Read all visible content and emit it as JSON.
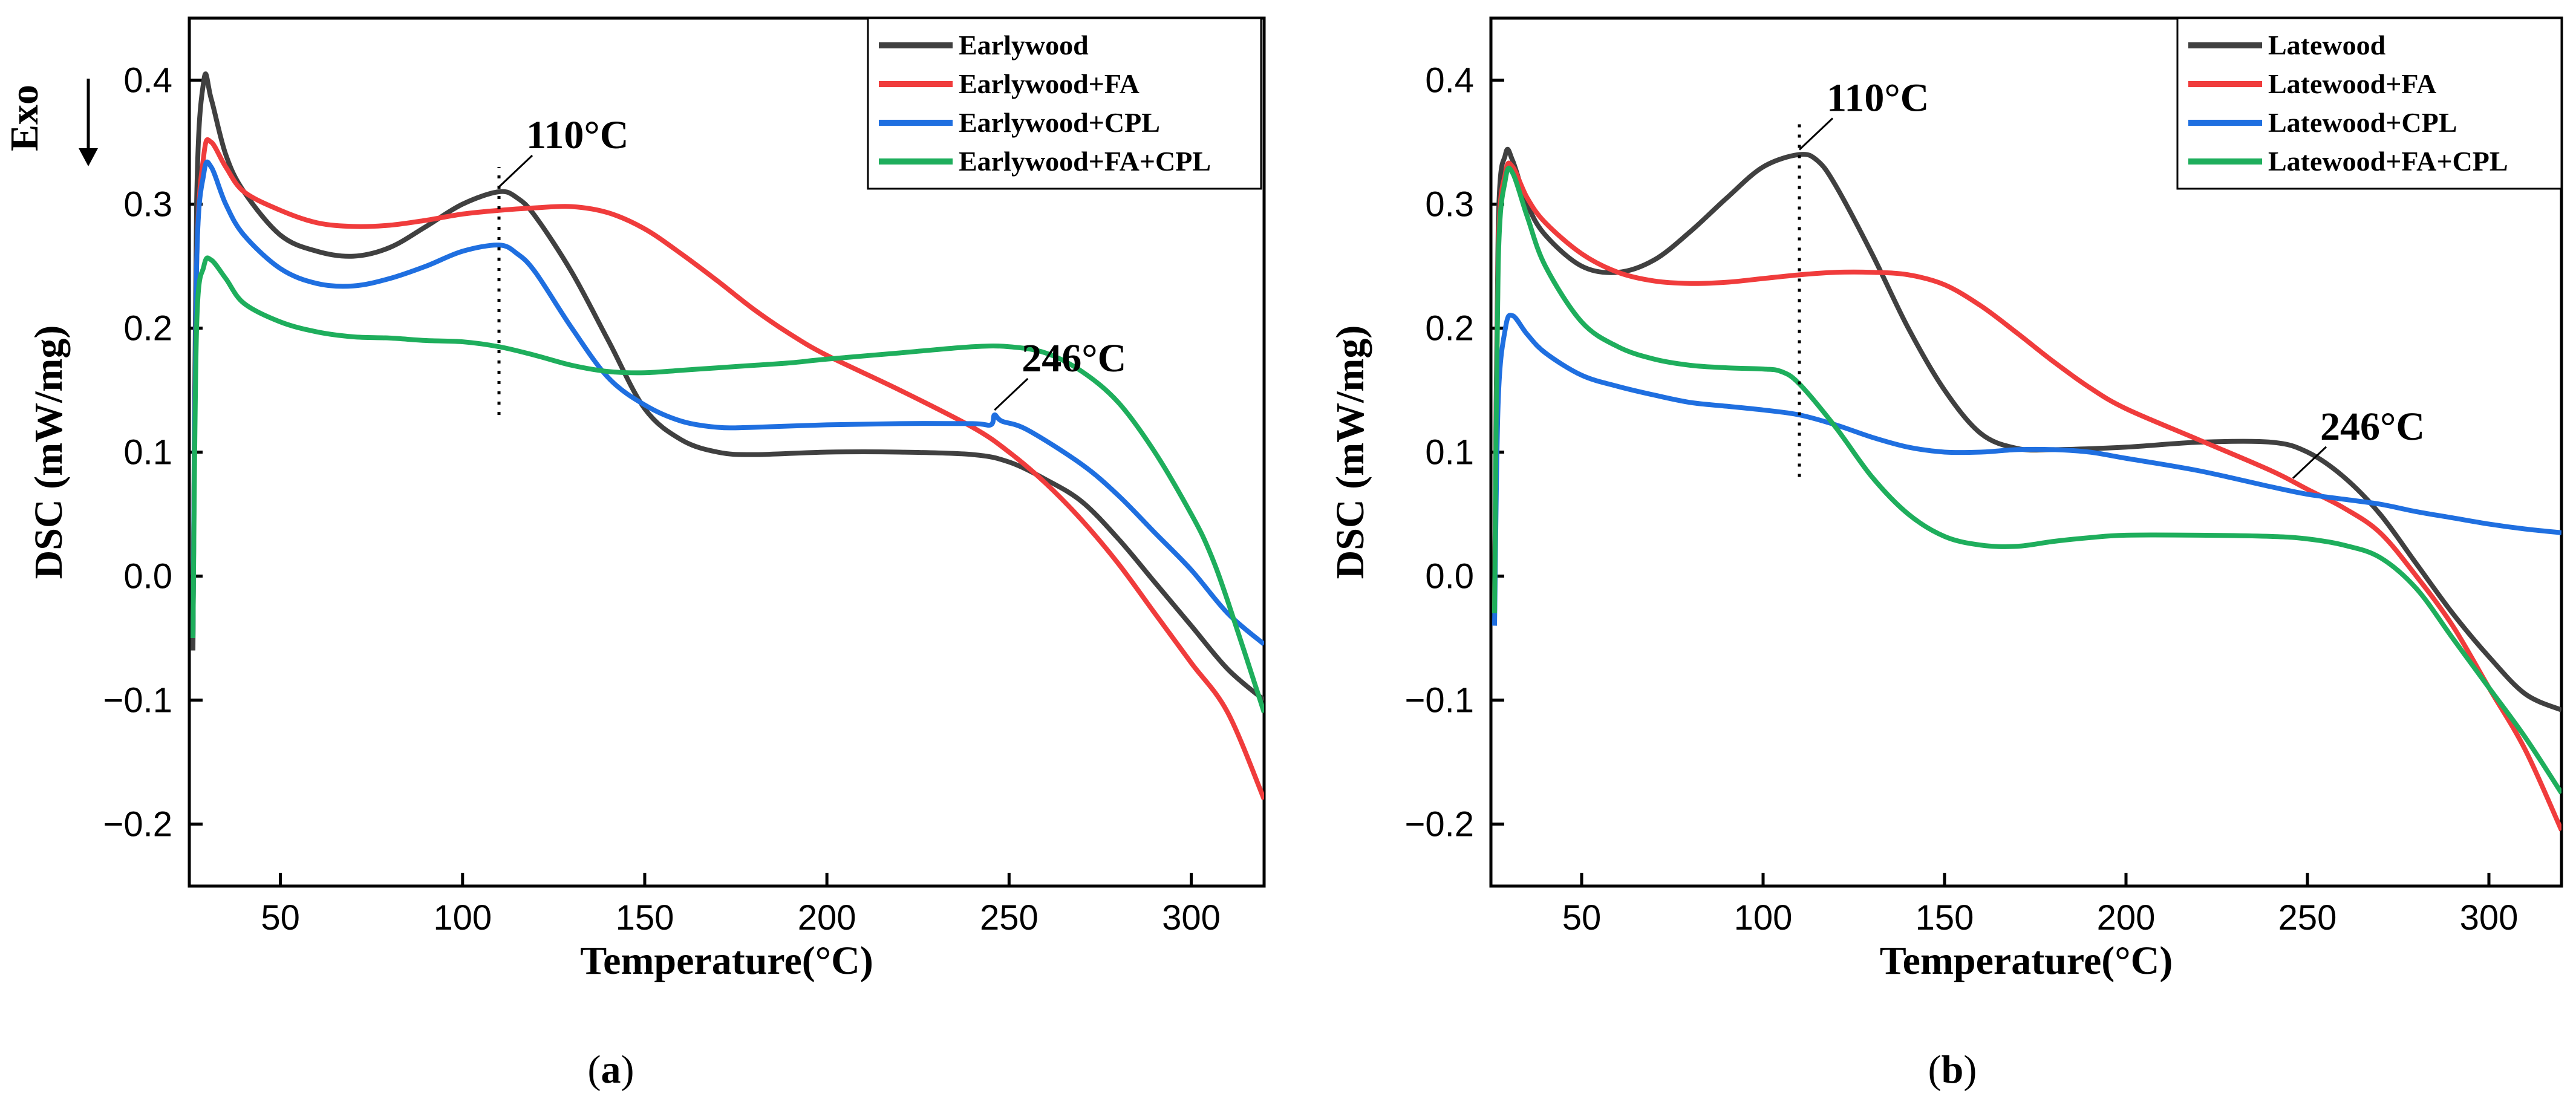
{
  "chart_data": [
    {
      "type": "line",
      "panel_label": "a",
      "title": "",
      "xlabel": "Temperature(°C)",
      "ylabel": "DSC (mW/mg)",
      "corner_label": "Exo",
      "xlim": [
        25,
        320
      ],
      "ylim": [
        -0.25,
        0.45
      ],
      "xticks": [
        50,
        100,
        150,
        200,
        250,
        300
      ],
      "yticks": [
        -0.2,
        -0.1,
        0.0,
        0.1,
        0.2,
        0.3,
        0.4
      ],
      "ytick_labels": [
        "−0.2",
        "−0.1",
        "0.0",
        "0.1",
        "0.2",
        "0.3",
        "0.4"
      ],
      "legend_position": "top-right",
      "annotations": [
        {
          "text": "110°C",
          "x": 110,
          "y": 0.31,
          "guide": {
            "x": 110,
            "y_from": 0.13,
            "y_to": 0.33
          }
        },
        {
          "text": "246°C",
          "x": 246,
          "y": 0.13
        }
      ],
      "series": [
        {
          "name": "Earlywood",
          "color": "#404040",
          "x": [
            26,
            27,
            29,
            31,
            35,
            40,
            50,
            60,
            70,
            80,
            90,
            100,
            110,
            115,
            120,
            130,
            140,
            150,
            160,
            170,
            180,
            200,
            220,
            240,
            250,
            260,
            270,
            280,
            290,
            300,
            310,
            320
          ],
          "y": [
            -0.06,
            0.3,
            0.4,
            0.385,
            0.34,
            0.31,
            0.275,
            0.262,
            0.258,
            0.265,
            0.282,
            0.3,
            0.31,
            0.305,
            0.29,
            0.245,
            0.19,
            0.135,
            0.11,
            0.1,
            0.098,
            0.1,
            0.1,
            0.098,
            0.092,
            0.078,
            0.06,
            0.03,
            -0.005,
            -0.04,
            -0.075,
            -0.1
          ]
        },
        {
          "name": "Earlywood+FA",
          "color": "#f03c3c",
          "x": [
            26,
            27,
            29,
            31,
            35,
            40,
            50,
            60,
            70,
            80,
            90,
            100,
            110,
            120,
            130,
            140,
            150,
            160,
            170,
            180,
            190,
            200,
            220,
            240,
            250,
            260,
            270,
            280,
            290,
            300,
            310,
            320
          ],
          "y": [
            -0.05,
            0.25,
            0.34,
            0.35,
            0.33,
            0.31,
            0.295,
            0.285,
            0.282,
            0.283,
            0.287,
            0.292,
            0.295,
            0.297,
            0.298,
            0.293,
            0.28,
            0.26,
            0.238,
            0.215,
            0.195,
            0.178,
            0.15,
            0.12,
            0.1,
            0.075,
            0.045,
            0.01,
            -0.03,
            -0.07,
            -0.11,
            -0.18
          ]
        },
        {
          "name": "Earlywood+CPL",
          "color": "#1f6fe0",
          "x": [
            26,
            27,
            29,
            31,
            35,
            40,
            50,
            60,
            70,
            80,
            90,
            100,
            110,
            115,
            120,
            130,
            140,
            150,
            160,
            170,
            180,
            200,
            220,
            240,
            245,
            246,
            248,
            255,
            270,
            280,
            290,
            300,
            310,
            320
          ],
          "y": [
            -0.05,
            0.25,
            0.325,
            0.33,
            0.3,
            0.275,
            0.248,
            0.236,
            0.234,
            0.24,
            0.25,
            0.262,
            0.267,
            0.26,
            0.245,
            0.2,
            0.16,
            0.138,
            0.125,
            0.12,
            0.12,
            0.122,
            0.123,
            0.123,
            0.122,
            0.13,
            0.125,
            0.118,
            0.09,
            0.065,
            0.035,
            0.005,
            -0.03,
            -0.055
          ]
        },
        {
          "name": "Earlywood+FA+CPL",
          "color": "#1eae5c",
          "x": [
            26,
            27,
            29,
            31,
            35,
            40,
            50,
            60,
            70,
            80,
            90,
            100,
            110,
            120,
            130,
            140,
            150,
            160,
            170,
            180,
            190,
            200,
            220,
            240,
            250,
            260,
            270,
            280,
            290,
            300,
            305,
            310,
            320
          ],
          "y": [
            -0.05,
            0.2,
            0.25,
            0.255,
            0.24,
            0.22,
            0.205,
            0.197,
            0.193,
            0.192,
            0.19,
            0.189,
            0.185,
            0.178,
            0.17,
            0.165,
            0.164,
            0.166,
            0.168,
            0.17,
            0.172,
            0.175,
            0.18,
            0.185,
            0.185,
            0.18,
            0.165,
            0.14,
            0.1,
            0.05,
            0.02,
            -0.02,
            -0.11
          ]
        }
      ]
    },
    {
      "type": "line",
      "panel_label": "b",
      "title": "",
      "xlabel": "Temperature(°C)",
      "ylabel": "DSC (mW/mg)",
      "xlim": [
        25,
        320
      ],
      "ylim": [
        -0.25,
        0.45
      ],
      "xticks": [
        50,
        100,
        150,
        200,
        250,
        300
      ],
      "yticks": [
        -0.2,
        -0.1,
        0.0,
        0.1,
        0.2,
        0.3,
        0.4
      ],
      "ytick_labels": [
        "−0.2",
        "−0.1",
        "0.0",
        "0.1",
        "0.2",
        "0.3",
        "0.4"
      ],
      "legend_position": "top-right",
      "annotations": [
        {
          "text": "110°C",
          "x": 110,
          "y": 0.34,
          "guide": {
            "x": 110,
            "y_from": 0.08,
            "y_to": 0.37
          }
        },
        {
          "text": "246°C",
          "x": 246,
          "y": 0.075
        }
      ],
      "series": [
        {
          "name": "Latewood",
          "color": "#404040",
          "x": [
            26,
            27,
            29,
            31,
            35,
            40,
            50,
            60,
            70,
            80,
            90,
            100,
            110,
            115,
            120,
            130,
            140,
            150,
            160,
            170,
            180,
            200,
            220,
            240,
            250,
            260,
            270,
            280,
            290,
            300,
            310,
            320
          ],
          "y": [
            -0.03,
            0.28,
            0.34,
            0.335,
            0.3,
            0.275,
            0.25,
            0.245,
            0.255,
            0.278,
            0.305,
            0.33,
            0.34,
            0.335,
            0.315,
            0.26,
            0.2,
            0.15,
            0.115,
            0.103,
            0.102,
            0.104,
            0.108,
            0.108,
            0.1,
            0.08,
            0.05,
            0.01,
            -0.03,
            -0.065,
            -0.095,
            -0.108
          ]
        },
        {
          "name": "Latewood+FA",
          "color": "#f03c3c",
          "x": [
            26,
            27,
            29,
            31,
            35,
            40,
            50,
            60,
            70,
            80,
            90,
            100,
            110,
            120,
            130,
            140,
            150,
            160,
            170,
            180,
            190,
            200,
            220,
            240,
            250,
            260,
            270,
            280,
            290,
            300,
            310,
            320
          ],
          "y": [
            -0.03,
            0.26,
            0.325,
            0.33,
            0.305,
            0.285,
            0.26,
            0.245,
            0.238,
            0.236,
            0.237,
            0.24,
            0.243,
            0.245,
            0.245,
            0.243,
            0.235,
            0.218,
            0.196,
            0.173,
            0.152,
            0.135,
            0.11,
            0.085,
            0.07,
            0.055,
            0.035,
            0.0,
            -0.04,
            -0.09,
            -0.14,
            -0.205
          ]
        },
        {
          "name": "Latewood+CPL",
          "color": "#1f6fe0",
          "x": [
            26,
            27,
            29,
            31,
            35,
            40,
            50,
            60,
            70,
            80,
            90,
            100,
            110,
            120,
            130,
            140,
            150,
            160,
            170,
            180,
            190,
            200,
            220,
            240,
            250,
            260,
            270,
            280,
            290,
            300,
            310,
            320
          ],
          "y": [
            -0.04,
            0.14,
            0.2,
            0.21,
            0.195,
            0.18,
            0.162,
            0.153,
            0.146,
            0.14,
            0.137,
            0.134,
            0.13,
            0.122,
            0.112,
            0.104,
            0.1,
            0.1,
            0.102,
            0.102,
            0.1,
            0.095,
            0.085,
            0.072,
            0.066,
            0.062,
            0.058,
            0.052,
            0.047,
            0.042,
            0.038,
            0.035
          ]
        },
        {
          "name": "Latewood+FA+CPL",
          "color": "#1eae5c",
          "x": [
            26,
            27,
            29,
            31,
            35,
            40,
            50,
            60,
            70,
            80,
            90,
            100,
            105,
            110,
            120,
            130,
            140,
            150,
            160,
            170,
            180,
            190,
            200,
            220,
            240,
            250,
            260,
            270,
            280,
            290,
            300,
            310,
            320
          ],
          "y": [
            -0.03,
            0.25,
            0.32,
            0.325,
            0.29,
            0.25,
            0.205,
            0.185,
            0.175,
            0.17,
            0.168,
            0.167,
            0.165,
            0.155,
            0.12,
            0.08,
            0.05,
            0.032,
            0.025,
            0.024,
            0.028,
            0.031,
            0.033,
            0.033,
            0.032,
            0.03,
            0.025,
            0.015,
            -0.01,
            -0.05,
            -0.09,
            -0.13,
            -0.175
          ]
        }
      ]
    }
  ]
}
